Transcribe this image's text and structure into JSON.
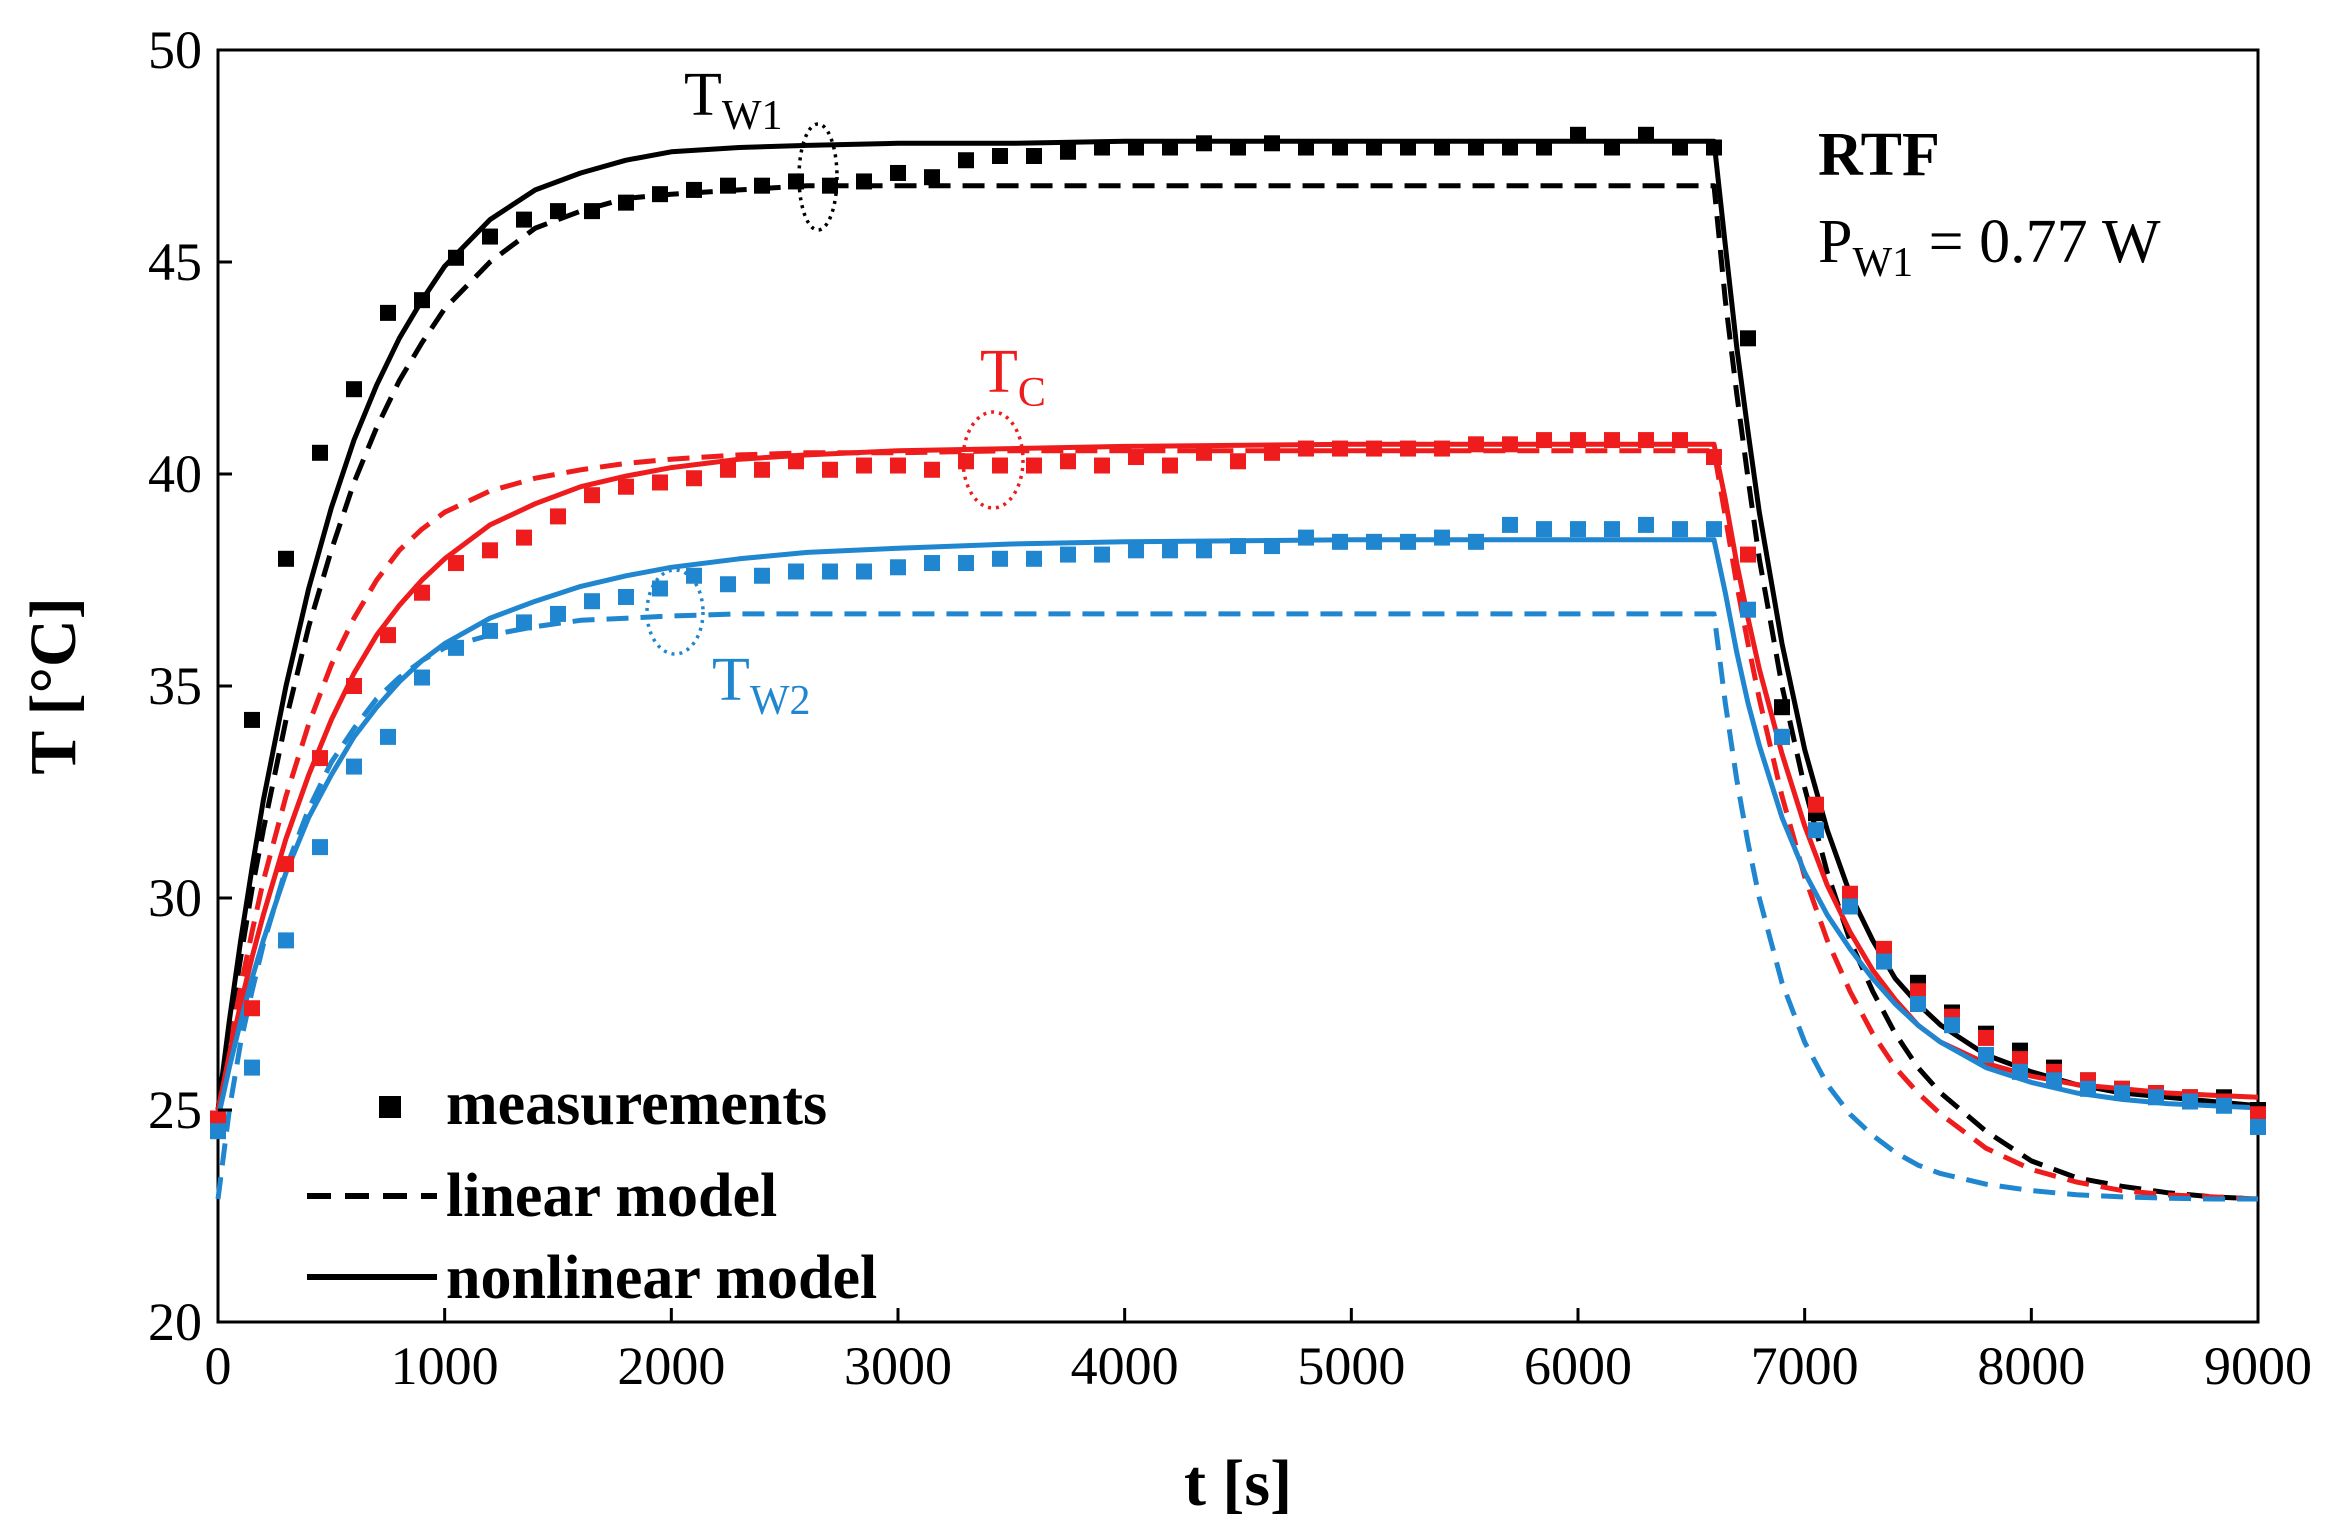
{
  "chart_data": {
    "type": "line",
    "xlabel": "t [s]",
    "ylabel": "T [°C]",
    "xlim": [
      0,
      9000
    ],
    "ylim": [
      20,
      50
    ],
    "xticks": [
      0,
      1000,
      2000,
      3000,
      4000,
      5000,
      6000,
      7000,
      8000,
      9000
    ],
    "yticks": [
      20,
      25,
      30,
      35,
      40,
      45,
      50
    ],
    "grid": false,
    "heating_off_time_s": 6600,
    "annotation": {
      "title": "RTF",
      "power_main": "P",
      "power_sub": "W1",
      "power_value": " = 0.77 W"
    },
    "curve_labels": [
      {
        "main": "T",
        "sub": "W1",
        "color": "#000000"
      },
      {
        "main": "T",
        "sub": "C",
        "color": "#ee1c1c"
      },
      {
        "main": "T",
        "sub": "W2",
        "color": "#1f86cf"
      }
    ],
    "legend": {
      "position": "bottom-left",
      "entries": [
        {
          "label": "measurements",
          "style": "marker"
        },
        {
          "label": "linear model",
          "style": "dashed"
        },
        {
          "label": "nonlinear model",
          "style": "solid"
        }
      ]
    },
    "series": [
      {
        "name": "T_W1 linear model",
        "color": "#000000",
        "style": "dashed",
        "x": [
          0,
          50,
          100,
          150,
          200,
          300,
          400,
          500,
          600,
          700,
          800,
          900,
          1000,
          1200,
          1400,
          1600,
          1800,
          2000,
          2300,
          2600,
          3000,
          3500,
          4000,
          5000,
          6000,
          6600,
          6650,
          6700,
          6750,
          6800,
          6900,
          7000,
          7100,
          7200,
          7300,
          7400,
          7500,
          7600,
          7800,
          8000,
          8200,
          8400,
          8600,
          8800,
          9000
        ],
        "y": [
          25,
          26.9,
          28.6,
          30.2,
          31.6,
          34.2,
          36.4,
          38.2,
          39.8,
          41.1,
          42.2,
          43.1,
          43.9,
          45.0,
          45.8,
          46.2,
          46.5,
          46.6,
          46.7,
          46.8,
          46.8,
          46.8,
          46.8,
          46.8,
          46.8,
          46.8,
          44.1,
          41.9,
          39.9,
          38.0,
          35.0,
          32.6,
          30.6,
          29.0,
          27.8,
          26.8,
          26.0,
          25.4,
          24.5,
          23.8,
          23.4,
          23.2,
          23.05,
          22.95,
          22.9
        ]
      },
      {
        "name": "T_W1 nonlinear model",
        "color": "#000000",
        "style": "solid",
        "x": [
          0,
          50,
          100,
          150,
          200,
          300,
          400,
          500,
          600,
          700,
          800,
          900,
          1000,
          1200,
          1400,
          1600,
          1800,
          2000,
          2300,
          2600,
          3000,
          3500,
          4000,
          5000,
          6000,
          6600,
          6650,
          6700,
          6750,
          6800,
          6900,
          7000,
          7100,
          7200,
          7300,
          7400,
          7500,
          7600,
          7800,
          8000,
          8200,
          8400,
          8600,
          8800,
          9000
        ],
        "y": [
          25,
          27.1,
          29.0,
          30.7,
          32.3,
          35.0,
          37.3,
          39.2,
          40.8,
          42.1,
          43.2,
          44.1,
          44.9,
          46.0,
          46.7,
          47.1,
          47.4,
          47.6,
          47.7,
          47.75,
          47.8,
          47.8,
          47.85,
          47.85,
          47.85,
          47.85,
          45.4,
          43.0,
          41.0,
          39.1,
          36.0,
          33.5,
          31.6,
          30.1,
          29.0,
          28.1,
          27.5,
          27.0,
          26.3,
          25.9,
          25.6,
          25.4,
          25.3,
          25.2,
          25.1
        ]
      },
      {
        "name": "T_W1 measurements",
        "color": "#000000",
        "style": "marker",
        "x": [
          0,
          150,
          300,
          450,
          600,
          750,
          900,
          1050,
          1200,
          1350,
          1500,
          1650,
          1800,
          1950,
          2100,
          2250,
          2400,
          2550,
          2700,
          2850,
          3000,
          3150,
          3300,
          3450,
          3600,
          3750,
          3900,
          4050,
          4200,
          4350,
          4500,
          4650,
          4800,
          4950,
          5100,
          5250,
          5400,
          5550,
          5700,
          5850,
          6000,
          6150,
          6300,
          6450,
          6600,
          6750,
          6900,
          7050,
          7200,
          7350,
          7500,
          7650,
          7800,
          7950,
          8100,
          8250,
          8400,
          8550,
          8700,
          8850,
          9000
        ],
        "y": [
          24.8,
          34.2,
          38.0,
          40.5,
          42.0,
          43.8,
          44.1,
          45.1,
          45.6,
          46.0,
          46.2,
          46.2,
          46.4,
          46.6,
          46.7,
          46.8,
          46.8,
          46.9,
          46.8,
          46.9,
          47.1,
          47.0,
          47.4,
          47.5,
          47.5,
          47.6,
          47.7,
          47.7,
          47.7,
          47.8,
          47.7,
          47.8,
          47.7,
          47.7,
          47.7,
          47.7,
          47.7,
          47.7,
          47.7,
          47.7,
          48.0,
          47.7,
          48.0,
          47.7,
          47.7,
          43.2,
          34.5,
          32.0,
          30.0,
          28.7,
          28.0,
          27.3,
          26.8,
          26.4,
          26.0,
          25.7,
          25.5,
          25.4,
          25.3,
          25.3,
          25.0
        ]
      },
      {
        "name": "T_C linear model",
        "color": "#ee1c1c",
        "style": "dashed",
        "x": [
          0,
          50,
          100,
          150,
          200,
          300,
          400,
          500,
          600,
          700,
          800,
          900,
          1000,
          1200,
          1400,
          1600,
          1800,
          2000,
          2300,
          2600,
          3000,
          3500,
          4000,
          5000,
          6000,
          6600,
          6650,
          6700,
          6750,
          6800,
          6900,
          7000,
          7100,
          7200,
          7300,
          7400,
          7500,
          7600,
          7800,
          8000,
          8200,
          8400,
          8600,
          8800,
          9000
        ],
        "y": [
          25,
          26.5,
          27.9,
          29.2,
          30.4,
          32.4,
          34.1,
          35.5,
          36.6,
          37.5,
          38.2,
          38.7,
          39.1,
          39.6,
          39.9,
          40.1,
          40.25,
          40.35,
          40.45,
          40.5,
          40.5,
          40.55,
          40.55,
          40.55,
          40.55,
          40.55,
          39.0,
          37.4,
          36.0,
          34.7,
          32.4,
          30.5,
          29.0,
          27.8,
          26.8,
          26.0,
          25.4,
          24.9,
          24.1,
          23.6,
          23.3,
          23.1,
          23.0,
          22.95,
          22.9
        ]
      },
      {
        "name": "T_C nonlinear model",
        "color": "#ee1c1c",
        "style": "solid",
        "x": [
          0,
          50,
          100,
          150,
          200,
          300,
          400,
          500,
          600,
          700,
          800,
          900,
          1000,
          1200,
          1400,
          1600,
          1800,
          2000,
          2300,
          2600,
          3000,
          3500,
          4000,
          5000,
          6000,
          6600,
          6650,
          6700,
          6750,
          6800,
          6900,
          7000,
          7100,
          7200,
          7300,
          7400,
          7500,
          7600,
          7800,
          8000,
          8200,
          8400,
          8600,
          8800,
          9000
        ],
        "y": [
          25,
          26.3,
          27.5,
          28.6,
          29.6,
          31.4,
          32.9,
          34.2,
          35.3,
          36.2,
          36.9,
          37.5,
          38.0,
          38.8,
          39.3,
          39.7,
          39.95,
          40.15,
          40.35,
          40.45,
          40.55,
          40.6,
          40.65,
          40.7,
          40.7,
          40.7,
          39.4,
          37.9,
          36.6,
          35.4,
          33.4,
          31.7,
          30.3,
          29.2,
          28.3,
          27.6,
          27.0,
          26.6,
          26.1,
          25.8,
          25.6,
          25.5,
          25.4,
          25.35,
          25.3
        ]
      },
      {
        "name": "T_C measurements",
        "color": "#ee1c1c",
        "style": "marker",
        "x": [
          0,
          150,
          300,
          450,
          600,
          750,
          900,
          1050,
          1200,
          1350,
          1500,
          1650,
          1800,
          1950,
          2100,
          2250,
          2400,
          2550,
          2700,
          2850,
          3000,
          3150,
          3300,
          3450,
          3600,
          3750,
          3900,
          4050,
          4200,
          4350,
          4500,
          4650,
          4800,
          4950,
          5100,
          5250,
          5400,
          5550,
          5700,
          5850,
          6000,
          6150,
          6300,
          6450,
          6600,
          6750,
          6900,
          7050,
          7200,
          7350,
          7500,
          7650,
          7800,
          7950,
          8100,
          8250,
          8400,
          8550,
          8700,
          8850,
          9000
        ],
        "y": [
          24.8,
          27.4,
          30.8,
          33.3,
          35.0,
          36.2,
          37.2,
          37.9,
          38.2,
          38.5,
          39.0,
          39.5,
          39.7,
          39.8,
          39.9,
          40.1,
          40.1,
          40.3,
          40.1,
          40.2,
          40.2,
          40.1,
          40.3,
          40.2,
          40.2,
          40.3,
          40.2,
          40.4,
          40.2,
          40.5,
          40.3,
          40.5,
          40.6,
          40.6,
          40.6,
          40.6,
          40.6,
          40.7,
          40.7,
          40.8,
          40.8,
          40.8,
          40.8,
          40.8,
          40.4,
          38.1,
          33.8,
          32.2,
          30.1,
          28.8,
          27.8,
          27.2,
          26.7,
          26.2,
          25.9,
          25.7,
          25.5,
          25.4,
          25.3,
          25.2,
          24.9
        ]
      },
      {
        "name": "T_W2 linear model",
        "color": "#1f86cf",
        "style": "dashed",
        "x": [
          0,
          50,
          100,
          150,
          200,
          300,
          400,
          500,
          600,
          700,
          800,
          900,
          1000,
          1200,
          1400,
          1600,
          1800,
          2000,
          2300,
          2600,
          3000,
          3500,
          4000,
          5000,
          6000,
          6600,
          6650,
          6700,
          6750,
          6800,
          6900,
          7000,
          7100,
          7200,
          7300,
          7400,
          7500,
          7600,
          7800,
          8000,
          8200,
          8400,
          8600,
          8800,
          9000
        ],
        "y": [
          22.9,
          25.0,
          26.6,
          27.8,
          28.9,
          30.7,
          32.1,
          33.2,
          34.0,
          34.7,
          35.2,
          35.6,
          35.9,
          36.2,
          36.4,
          36.55,
          36.6,
          36.65,
          36.7,
          36.7,
          36.7,
          36.7,
          36.7,
          36.7,
          36.7,
          36.7,
          34.6,
          32.8,
          31.3,
          30.0,
          28.0,
          26.6,
          25.6,
          24.9,
          24.4,
          24.0,
          23.7,
          23.5,
          23.25,
          23.1,
          23.0,
          22.95,
          22.92,
          22.9,
          22.9
        ]
      },
      {
        "name": "T_W2 nonlinear model",
        "color": "#1f86cf",
        "style": "solid",
        "x": [
          0,
          50,
          100,
          150,
          200,
          300,
          400,
          500,
          600,
          700,
          800,
          900,
          1000,
          1200,
          1400,
          1600,
          1800,
          2000,
          2300,
          2600,
          3000,
          3500,
          4000,
          5000,
          6000,
          6600,
          6650,
          6700,
          6750,
          6800,
          6900,
          7000,
          7100,
          7200,
          7300,
          7400,
          7500,
          7600,
          7800,
          8000,
          8200,
          8400,
          8600,
          8800,
          9000
        ],
        "y": [
          24.8,
          26.0,
          27.1,
          28.1,
          29.0,
          30.6,
          31.9,
          32.9,
          33.8,
          34.5,
          35.1,
          35.6,
          36.0,
          36.6,
          37.0,
          37.35,
          37.6,
          37.8,
          38.0,
          38.15,
          38.25,
          38.35,
          38.4,
          38.45,
          38.45,
          38.45,
          37.2,
          35.8,
          34.6,
          33.6,
          31.9,
          30.6,
          29.6,
          28.8,
          28.1,
          27.5,
          27.0,
          26.6,
          26.0,
          25.65,
          25.4,
          25.25,
          25.15,
          25.1,
          25.05
        ]
      },
      {
        "name": "T_W2 measurements",
        "color": "#1f86cf",
        "style": "marker",
        "x": [
          0,
          150,
          300,
          450,
          600,
          750,
          900,
          1050,
          1200,
          1350,
          1500,
          1650,
          1800,
          1950,
          2100,
          2250,
          2400,
          2550,
          2700,
          2850,
          3000,
          3150,
          3300,
          3450,
          3600,
          3750,
          3900,
          4050,
          4200,
          4350,
          4500,
          4650,
          4800,
          4950,
          5100,
          5250,
          5400,
          5550,
          5700,
          5850,
          6000,
          6150,
          6300,
          6450,
          6600,
          6750,
          6900,
          7050,
          7200,
          7350,
          7500,
          7650,
          7800,
          7950,
          8100,
          8250,
          8400,
          8550,
          8700,
          8850,
          9000
        ],
        "y": [
          24.5,
          26.0,
          29.0,
          31.2,
          33.1,
          33.8,
          35.2,
          35.9,
          36.3,
          36.5,
          36.7,
          37.0,
          37.1,
          37.3,
          37.6,
          37.4,
          37.6,
          37.7,
          37.7,
          37.7,
          37.8,
          37.9,
          37.9,
          38.0,
          38.0,
          38.1,
          38.1,
          38.2,
          38.2,
          38.2,
          38.3,
          38.3,
          38.5,
          38.4,
          38.4,
          38.4,
          38.5,
          38.4,
          38.8,
          38.7,
          38.7,
          38.7,
          38.8,
          38.7,
          38.7,
          36.8,
          33.8,
          31.6,
          29.8,
          28.5,
          27.5,
          27.0,
          26.3,
          25.9,
          25.7,
          25.5,
          25.4,
          25.3,
          25.2,
          25.1,
          24.6
        ]
      }
    ]
  }
}
